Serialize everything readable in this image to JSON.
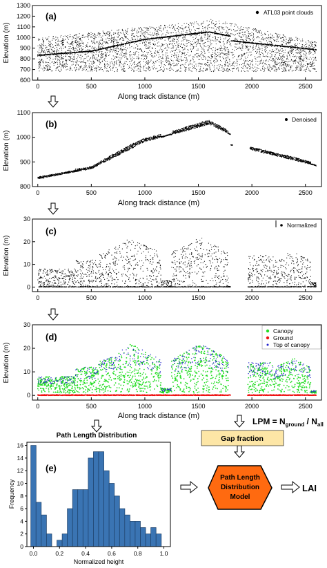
{
  "panels": [
    {
      "id": "a",
      "label": "(a)",
      "ylabel": "Elevation (m)",
      "xlabel": "Along track distance (m)",
      "legend": "ATL03 point clouds",
      "xlim": [
        -50,
        2650
      ],
      "ylim": [
        600,
        1300
      ],
      "yticks": [
        600,
        700,
        800,
        900,
        1000,
        1100,
        1200,
        1300
      ],
      "xticks": [
        0,
        500,
        1000,
        1500,
        2000,
        2500
      ]
    },
    {
      "id": "b",
      "label": "(b)",
      "ylabel": "Elevation (m)",
      "xlabel": "Along track distance (m)",
      "legend": "Denoised",
      "xlim": [
        -50,
        2650
      ],
      "ylim": [
        800,
        1100
      ],
      "yticks": [
        800,
        900,
        1000,
        1100
      ],
      "xticks": [
        0,
        500,
        1000,
        1500,
        2000,
        2500
      ]
    },
    {
      "id": "c",
      "label": "(c)",
      "ylabel": "Elevation (m)",
      "xlabel": "",
      "legend": "Normalized",
      "xlim": [
        -50,
        2650
      ],
      "ylim": [
        -2,
        30
      ],
      "yticks": [
        0,
        10,
        20,
        30
      ],
      "xticks": [
        0,
        500,
        1000,
        1500,
        2000,
        2500
      ]
    },
    {
      "id": "d",
      "label": "(d)",
      "ylabel": "Elevation (m)",
      "xlabel": "Along track distance (m)",
      "legend_items": [
        {
          "label": "Canopy",
          "color": "#22dd22"
        },
        {
          "label": "Ground",
          "color": "#ee1111"
        },
        {
          "label": "Top of canopy",
          "color": "#2222cc"
        }
      ],
      "xlim": [
        -50,
        2650
      ],
      "ylim": [
        -2,
        30
      ],
      "yticks": [
        0,
        10,
        20,
        30
      ],
      "xticks": [
        0,
        500,
        1000,
        1500,
        2000,
        2500
      ]
    }
  ],
  "histogram": {
    "label": "(e)",
    "title": "Path Length Distribution",
    "xlabel": "Normalized height",
    "ylabel": "Frequency",
    "xticks": [
      "0.0",
      "0.2",
      "0.4",
      "0.6",
      "0.8",
      "1.0"
    ],
    "yticks": [
      "0",
      "2",
      "4",
      "6",
      "8",
      "10",
      "12",
      "14",
      "16"
    ]
  },
  "chart_data": {
    "type": "bar",
    "title": "Path Length Distribution",
    "xlabel": "Normalized height",
    "ylabel": "Frequency",
    "bin_width": 0.04,
    "bin_start": -0.02,
    "values": [
      16,
      7,
      5,
      2,
      0,
      1,
      2,
      6,
      9,
      9,
      9,
      14,
      15,
      15,
      12,
      10,
      8,
      6,
      5,
      4,
      4,
      3,
      2,
      3,
      2
    ],
    "ylim": [
      0,
      16.5
    ],
    "xlim": [
      -0.05,
      1.05
    ]
  },
  "flow": {
    "lpm_text": "LPM = N",
    "lpm_sub1": "ground",
    "lpm_mid": " / N",
    "lpm_sub2": "all",
    "gap_fraction": "Gap fraction",
    "model_line1": "Path Length",
    "model_line2": "Distribution",
    "model_line3": "Model",
    "lai": "LAI"
  },
  "colors": {
    "gap_box": "#fde6a6",
    "model_hex": "#ff6a10",
    "bar": "#3a74b3",
    "canopy": "#22dd22",
    "ground": "#ee1111",
    "toc": "#2222cc"
  }
}
